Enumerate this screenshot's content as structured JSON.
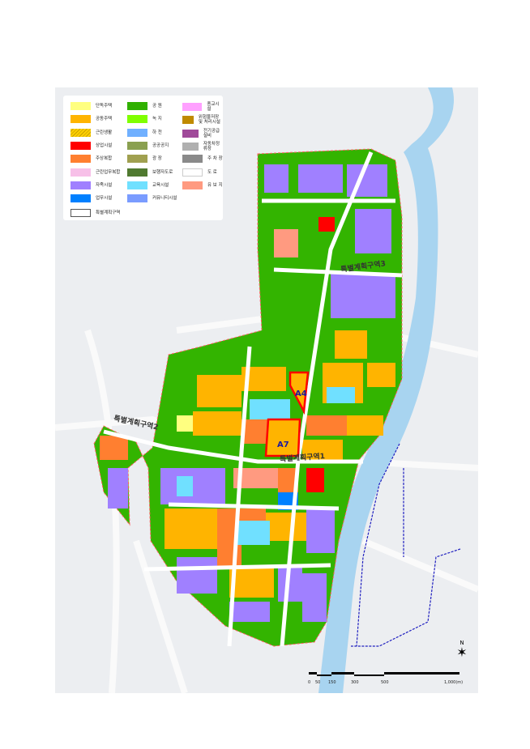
{
  "legend": {
    "items": [
      {
        "label": "단독주택",
        "color": "#ffff80"
      },
      {
        "label": "공동주택",
        "color": "#ffb400"
      },
      {
        "label": "근린생활",
        "color": "#ffd000",
        "hatched": true
      },
      {
        "label": "상업시설",
        "color": "#ff0000"
      },
      {
        "label": "주상복합",
        "color": "#ff7f30"
      },
      {
        "label": "근린업무복합",
        "color": "#f7c0e8"
      },
      {
        "label": "자족시설",
        "color": "#a080ff"
      },
      {
        "label": "업무시설",
        "color": "#0080ff"
      },
      {
        "label": "공 원",
        "color": "#30b000"
      },
      {
        "label": "녹 지",
        "color": "#80ff00"
      },
      {
        "label": "하 천",
        "color": "#70b0ff"
      },
      {
        "label": "공공공지",
        "color": "#8aa050"
      },
      {
        "label": "광 장",
        "color": "#a0a050"
      },
      {
        "label": "보행자도로",
        "color": "#507a30"
      },
      {
        "label": "교육시설",
        "color": "#70e0ff"
      },
      {
        "label": "커뮤니티시설",
        "color": "#7a9cff"
      },
      {
        "label": "종교시설",
        "color": "#ffa0ff"
      },
      {
        "label": "위험물저장 및 처리시설",
        "color": "#c08a00"
      },
      {
        "label": "전기공급설비",
        "color": "#a04a9a"
      },
      {
        "label": "자동차정류장",
        "color": "#b0b0b0"
      },
      {
        "label": "주 차 장",
        "color": "#8a8a8a"
      },
      {
        "label": "도 로",
        "color": "#ffffff"
      },
      {
        "label": "유 보 지",
        "color": "#ff9a80"
      }
    ],
    "special_zone_label": "특별계획구역"
  },
  "map_labels": {
    "zone1": "특별계획구역1",
    "zone2": "특별계획구역2",
    "zone3": "특별계획구역3",
    "parcel_a4": "A4",
    "parcel_a7": "A7"
  },
  "scale": {
    "ticks": [
      "0",
      "50",
      "150",
      "300",
      "500",
      "1,000(m)"
    ]
  },
  "north_arrow": "N",
  "colors": {
    "river": "#a8d4f0",
    "background": "#eef0f2",
    "road": "#ffffff",
    "highlight": "#ff0000",
    "boundary": "#2020c0"
  }
}
